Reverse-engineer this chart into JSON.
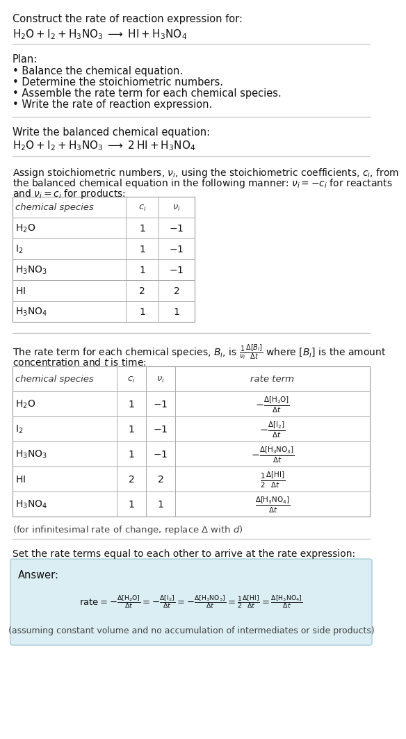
{
  "bg_color": "#ffffff",
  "title_line1": "Construct the rate of reaction expression for:",
  "title_line2": "$\\mathrm{H_2O + I_2 + H_3NO_3 \\;\\longrightarrow\\; HI + H_3NO_4}$",
  "plan_header": "Plan:",
  "plan_items": [
    "• Balance the chemical equation.",
    "• Determine the stoichiometric numbers.",
    "• Assemble the rate term for each chemical species.",
    "• Write the rate of reaction expression."
  ],
  "balanced_header": "Write the balanced chemical equation:",
  "balanced_eq": "$\\mathrm{H_2O + I_2 + H_3NO_3 \\;\\longrightarrow\\; 2\\,HI + H_3NO_4}$",
  "assign_text1": "Assign stoichiometric numbers, $\\nu_i$, using the stoichiometric coefficients, $c_i$, from",
  "assign_text2": "the balanced chemical equation in the following manner: $\\nu_i = -c_i$ for reactants",
  "assign_text3": "and $\\nu_i = c_i$ for products:",
  "table1_headers": [
    "chemical species",
    "$c_i$",
    "$\\nu_i$"
  ],
  "table1_rows": [
    [
      "$\\mathrm{H_2O}$",
      "1",
      "$-1$"
    ],
    [
      "$\\mathrm{I_2}$",
      "1",
      "$-1$"
    ],
    [
      "$\\mathrm{H_3NO_3}$",
      "1",
      "$-1$"
    ],
    [
      "$\\mathrm{HI}$",
      "2",
      "$2$"
    ],
    [
      "$\\mathrm{H_3NO_4}$",
      "1",
      "$1$"
    ]
  ],
  "rate_text1": "The rate term for each chemical species, $B_i$, is $\\frac{1}{\\nu_i}\\frac{\\Delta[B_i]}{\\Delta t}$ where $[B_i]$ is the amount",
  "rate_text2": "concentration and $t$ is time:",
  "table2_headers": [
    "chemical species",
    "$c_i$",
    "$\\nu_i$",
    "rate term"
  ],
  "table2_rows": [
    [
      "$\\mathrm{H_2O}$",
      "1",
      "$-1$",
      "$-\\frac{\\Delta[\\mathrm{H_2O}]}{\\Delta t}$"
    ],
    [
      "$\\mathrm{I_2}$",
      "1",
      "$-1$",
      "$-\\frac{\\Delta[\\mathrm{I_2}]}{\\Delta t}$"
    ],
    [
      "$\\mathrm{H_3NO_3}$",
      "1",
      "$-1$",
      "$-\\frac{\\Delta[\\mathrm{H_3NO_3}]}{\\Delta t}$"
    ],
    [
      "$\\mathrm{HI}$",
      "2",
      "$2$",
      "$\\frac{1}{2}\\frac{\\Delta[\\mathrm{HI}]}{\\Delta t}$"
    ],
    [
      "$\\mathrm{H_3NO_4}$",
      "1",
      "$1$",
      "$\\frac{\\Delta[\\mathrm{H_3NO_4}]}{\\Delta t}$"
    ]
  ],
  "infinitesimal_note": "(for infinitesimal rate of change, replace $\\Delta$ with $d$)",
  "set_equal_text": "Set the rate terms equal to each other to arrive at the rate expression:",
  "answer_label": "Answer:",
  "answer_box_color": "#daeef3",
  "answer_box_border": "#a8cdd7",
  "rate_expression": "$\\mathrm{rate} = -\\frac{\\Delta[\\mathrm{H_2O}]}{\\Delta t} = -\\frac{\\Delta[\\mathrm{I_2}]}{\\Delta t} = -\\frac{\\Delta[\\mathrm{H_3NO_3}]}{\\Delta t} = \\frac{1}{2}\\frac{\\Delta[\\mathrm{HI}]}{\\Delta t} = \\frac{\\Delta[\\mathrm{H_3NO_4}]}{\\Delta t}$",
  "assuming_note": "(assuming constant volume and no accumulation of intermediates or side products)"
}
